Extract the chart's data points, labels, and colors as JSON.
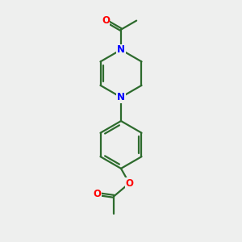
{
  "background_color": "#eeefee",
  "bond_color": "#2d6b2d",
  "N_color": "#0000ff",
  "O_color": "#ff0000",
  "line_width": 1.6,
  "figsize": [
    3.0,
    3.0
  ],
  "dpi": 100,
  "xlim": [
    0,
    10
  ],
  "ylim": [
    0,
    10
  ]
}
